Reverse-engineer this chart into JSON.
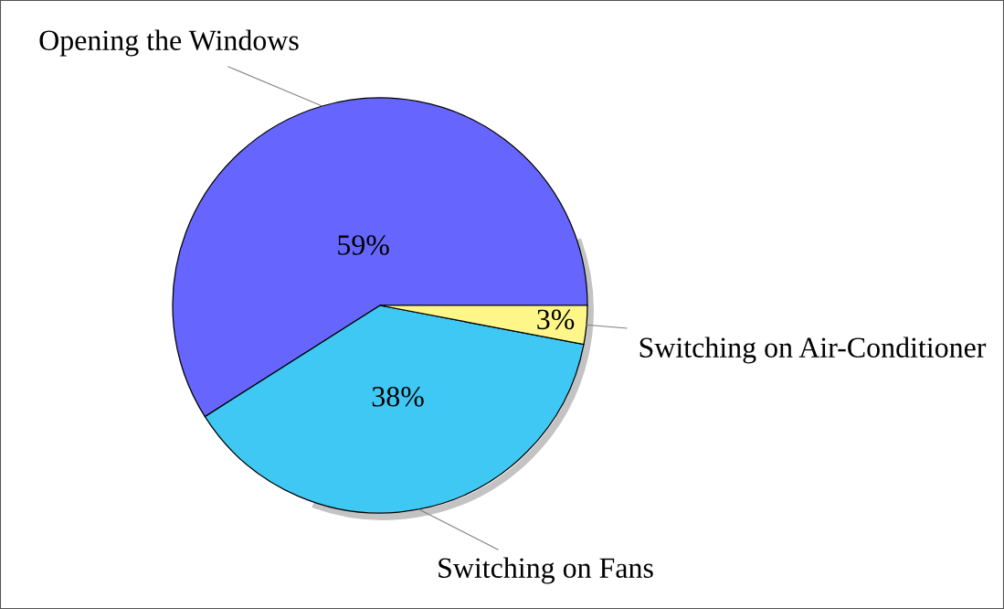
{
  "chart_data": {
    "type": "pie",
    "categories": [
      "Opening the Windows",
      "Switching on Fans",
      "Switching on Air-Conditioner"
    ],
    "values": [
      59,
      38,
      3
    ],
    "colors": [
      "#6666ff",
      "#40c8f4",
      "#fff68a"
    ],
    "value_labels": [
      "59%",
      "38%",
      "3%"
    ]
  }
}
